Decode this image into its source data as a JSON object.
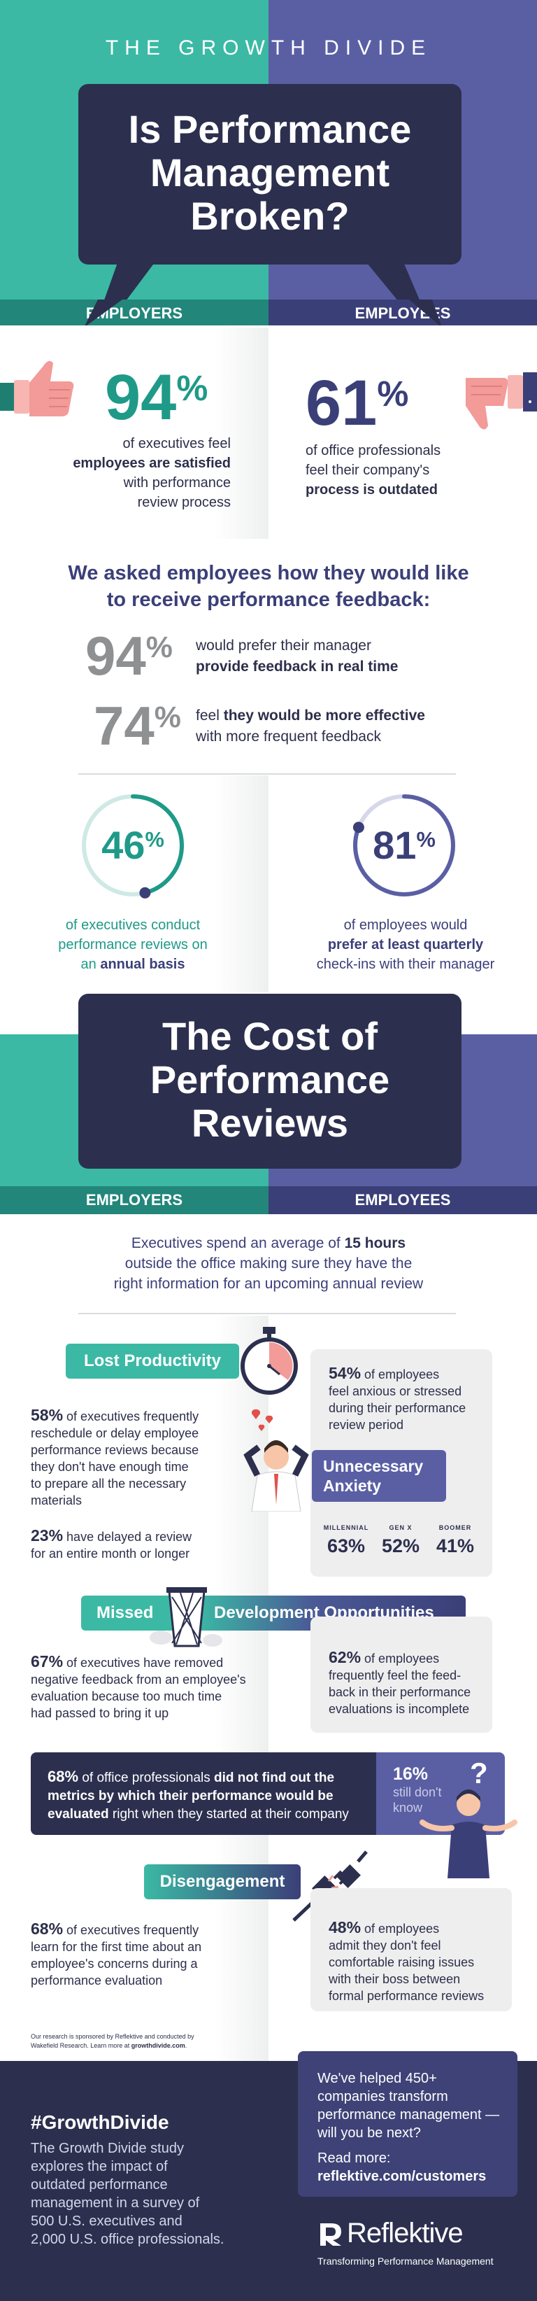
{
  "header": {
    "series_title": "THE GROWTH DIVIDE",
    "title_line1": "Is Performance",
    "title_line2": "Management",
    "title_line3": "Broken?",
    "employers_label": "EMPLOYERS",
    "employees_label": "EMPLOYEES"
  },
  "stats_top": {
    "left_value": "94",
    "left_unit": "%",
    "left_line1": "of executives feel",
    "left_line2": "employees are satisfied",
    "left_line3": "with performance",
    "left_line4": "review process",
    "right_value": "61",
    "right_unit": "%",
    "right_line1": "of office professionals",
    "right_line2": "feel their company's",
    "right_line3": "process is outdated"
  },
  "asked": {
    "heading_line1": "We asked employees how they would like",
    "heading_line2": "to receive performance feedback:",
    "row1_value": "94",
    "row1_unit": "%",
    "row1_line1": "would prefer their manager",
    "row1_line2": "provide feedback in real time",
    "row2_value": "74",
    "row2_unit": "%",
    "row2_line1_a": "feel ",
    "row2_line1_b": "they would be more effective",
    "row2_line2": "with more frequent feedback"
  },
  "rings": {
    "left_value": "46",
    "left_unit": "%",
    "left_fraction": 0.46,
    "left_line1": "of executives conduct",
    "left_line2": "performance reviews on",
    "left_line3_a": "an ",
    "left_line3_b": "annual basis",
    "right_value": "81",
    "right_unit": "%",
    "right_fraction": 0.81,
    "right_line1": "of employees would",
    "right_line2": "prefer at least quarterly",
    "right_line3": "check-ins with their manager"
  },
  "cost": {
    "title_line1": "The Cost of",
    "title_line2": "Performance",
    "title_line3": "Reviews",
    "employers_label": "EMPLOYERS",
    "employees_label": "EMPLOYEES",
    "intro_line1_a": "Executives spend an average of ",
    "intro_line1_b": "15 hours",
    "intro_line2": "outside the office making sure they have the",
    "intro_line3": "right information for an upcoming annual review"
  },
  "lost_productivity": {
    "tag": "Lost Productivity",
    "stat1_value": "58%",
    "stat1_line1": " of executives frequently",
    "stat1_line2": "reschedule or delay employee",
    "stat1_line3": "performance reviews because",
    "stat1_line4": "they don't have enough time",
    "stat1_line5": "to prepare all the necessary",
    "stat1_line6": "materials",
    "stat2_value": "23%",
    "stat2_line1": " have delayed a review",
    "stat2_line2": "for an entire month or longer"
  },
  "anxiety": {
    "stat_value": "54%",
    "stat_line1": " of employees",
    "stat_line2": "feel anxious or stressed",
    "stat_line3": "during their performance",
    "stat_line4": "review period",
    "tag_line1": "Unnecessary",
    "tag_line2": "Anxiety",
    "gen1_label": "MILLENNIAL",
    "gen1_value": "63%",
    "gen2_label": "GEN X",
    "gen2_value": "52%",
    "gen3_label": "BOOMER",
    "gen3_value": "41%"
  },
  "missed": {
    "tag_left": "Missed",
    "tag_right": "Development Opportunities",
    "left_value": "67%",
    "left_line1": " of executives have removed",
    "left_line2": "negative feedback from an employee's",
    "left_line3": "evaluation because too much time",
    "left_line4": "had passed to bring it up",
    "right_value": "62%",
    "right_line1": " of employees",
    "right_line2": "frequently feel the feed-",
    "right_line3": "back in their performance",
    "right_line4": "evaluations is incomplete"
  },
  "metrics": {
    "line1_a": "68%",
    "line1_b": " of office professionals ",
    "line1_c": "did not find out the",
    "line2": "metrics by which their performance would be",
    "line3_a": "evaluated",
    "line3_b": " right when they started at their company",
    "side_value": "16%",
    "side_line1": "still don't",
    "side_line2": "know"
  },
  "disengagement": {
    "tag": "Disengagement",
    "left_value": "68%",
    "left_line1": " of executives frequently",
    "left_line2": "learn for the first time about an",
    "left_line3": "employee's concerns during a",
    "left_line4": "performance evaluation",
    "right_value": "48%",
    "right_line1": " of employees",
    "right_line2": "admit they don't feel",
    "right_line3": "comfortable raising issues",
    "right_line4": "with their boss between",
    "right_line5": "formal performance reviews"
  },
  "research_note": {
    "line1": "Our research is sponsored by Reflektive and conducted by",
    "line2_a": "Wakefield Research. Learn more at ",
    "line2_b": "growthdivide.com",
    "line2_c": "."
  },
  "footer": {
    "hashtag": "#GrowthDivide",
    "desc_line1": "The Growth Divide study",
    "desc_line2": "explores the impact of",
    "desc_line3": "outdated performance",
    "desc_line4": "management in a survey of",
    "desc_line5": "500 U.S. executives and",
    "desc_line6": "2,000 U.S. office professionals.",
    "cta_line1": "We've helped 450+",
    "cta_line2": "companies transform",
    "cta_line3": "performance management —",
    "cta_line4": "will you be next?",
    "read_more": "Read more:",
    "link": "reflektive.com/customers",
    "brand": "Reflektive",
    "tagline": "Transforming Performance Management"
  },
  "colors": {
    "teal": "#3bb9a4",
    "teal_dark": "#22867a",
    "purple": "#5a5fa4",
    "navy": "#2c2f4e",
    "navy_text": "#3b3f78",
    "gray_text": "#8e9092",
    "coral": "#f29b98"
  }
}
